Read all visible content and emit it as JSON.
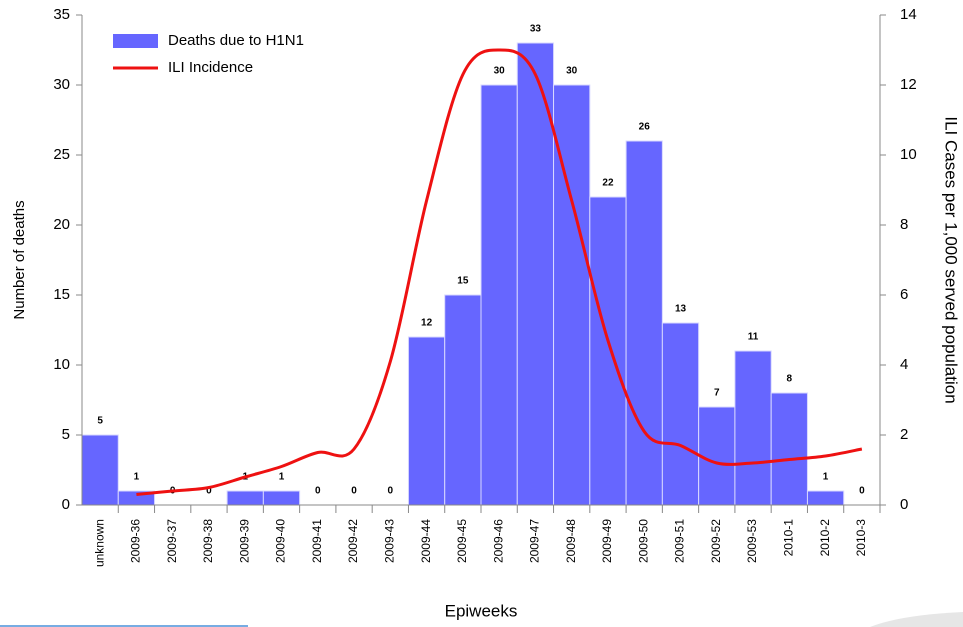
{
  "chart_data": {
    "type": "bar",
    "x_label": "Epiweeks",
    "y_label": "Number of deaths",
    "y2_label": "ILI Cases per 1,000 served population",
    "categories": [
      "unknown",
      "2009-36",
      "2009-37",
      "2009-38",
      "2009-39",
      "2009-40",
      "2009-41",
      "2009-42",
      "2009-43",
      "2009-44",
      "2009-45",
      "2009-46",
      "2009-47",
      "2009-48",
      "2009-49",
      "2009-50",
      "2009-51",
      "2009-52",
      "2009-53",
      "2010-1",
      "2010-2",
      "2010-3"
    ],
    "series": [
      {
        "name": "Deaths due to H1N1",
        "type": "bar",
        "color": "#6666ff",
        "values": [
          5,
          1,
          0,
          0,
          1,
          1,
          0,
          0,
          0,
          12,
          15,
          30,
          33,
          30,
          22,
          26,
          13,
          7,
          11,
          8,
          1,
          0
        ]
      },
      {
        "name": "ILI Incidence",
        "type": "line",
        "axis": "y2",
        "color": "#ee1111",
        "values": [
          null,
          0.3,
          0.4,
          0.5,
          0.8,
          1.1,
          1.5,
          1.6,
          4.1,
          8.7,
          12.3,
          13.0,
          12.3,
          8.7,
          4.7,
          2.1,
          1.7,
          1.2,
          1.2,
          1.3,
          1.4,
          1.6
        ]
      }
    ],
    "ylim": [
      0,
      35
    ],
    "yticks": [
      0,
      5,
      10,
      15,
      20,
      25,
      30,
      35
    ],
    "y2lim": [
      0,
      14
    ],
    "y2ticks": [
      0,
      2,
      4,
      6,
      8,
      10,
      12,
      14
    ],
    "legend": "upper left"
  }
}
